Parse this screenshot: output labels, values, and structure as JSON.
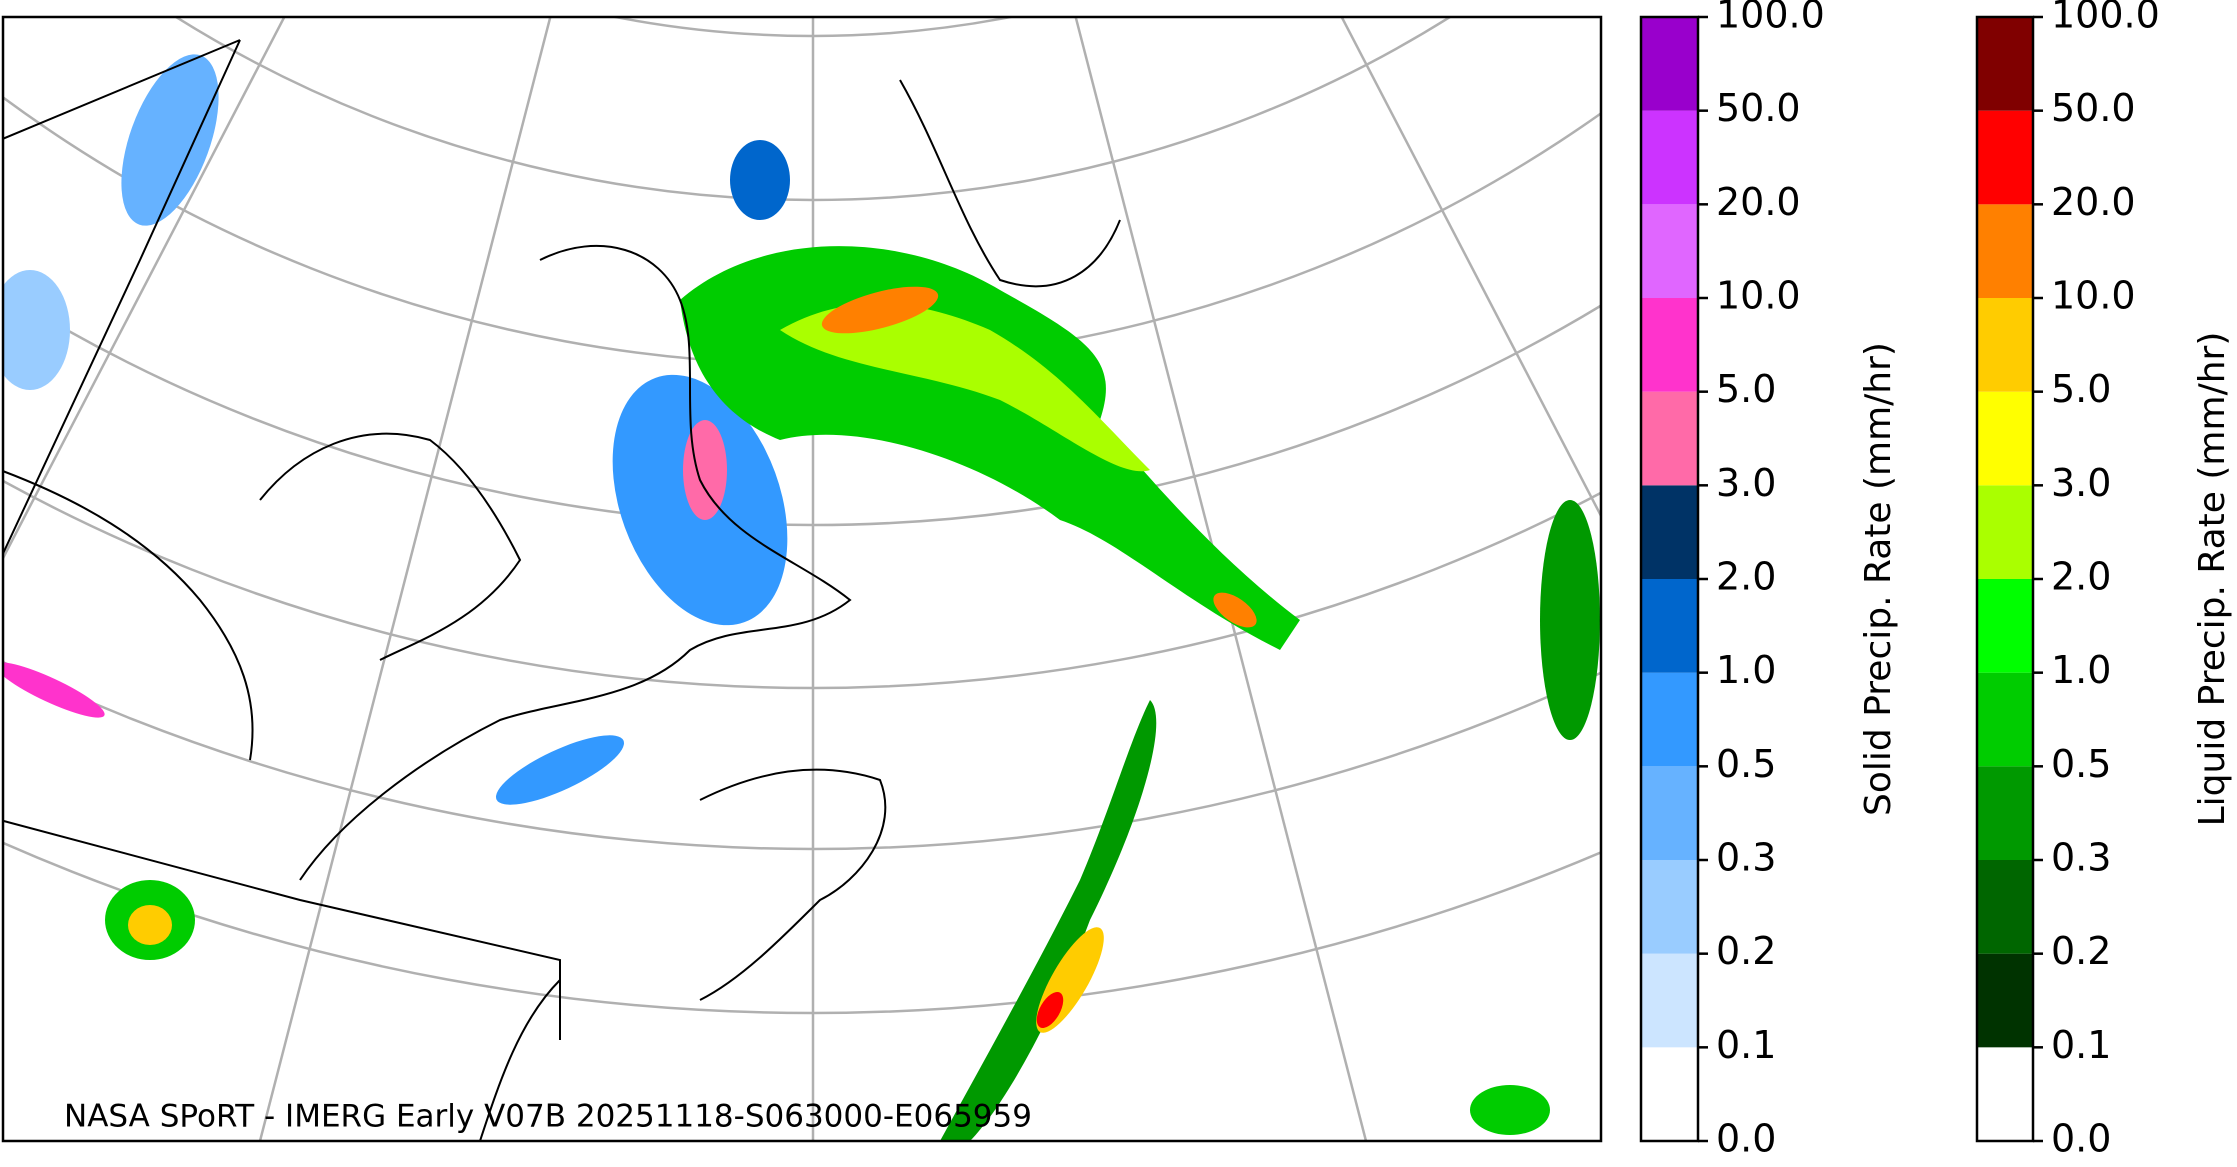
{
  "map": {
    "credit": "NASA SPoRT - IMERG Early V07B 20251118-S063000-E065959"
  },
  "colorbars": [
    {
      "label": "Solid Precip. Rate (mm/hr)",
      "colors": [
        "#ffffff",
        "#cce5ff",
        "#99ccff",
        "#66b2ff",
        "#3399ff",
        "#0066cc",
        "#003366",
        "#ff6aa8",
        "#ff33cc",
        "#e066ff",
        "#cc33ff",
        "#9900cc"
      ],
      "ticks": [
        {
          "value": 0,
          "label": "0.0"
        },
        0.1,
        0.2,
        0.3,
        0.5,
        {
          "value": 1,
          "label": "1.0"
        },
        {
          "value": 2,
          "label": "2.0"
        },
        {
          "value": 3,
          "label": "3.0"
        },
        {
          "value": 5,
          "label": "5.0"
        },
        {
          "value": 10,
          "label": "10.0"
        },
        {
          "value": 20,
          "label": "20.0"
        },
        {
          "value": 50,
          "label": "50.0"
        },
        {
          "value": 100,
          "label": "100.0"
        }
      ]
    },
    {
      "label": "Liquid Precip. Rate (mm/hr)",
      "colors": [
        "#ffffff",
        "#003300",
        "#006600",
        "#009900",
        "#00cc00",
        "#00ff00",
        "#aaff00",
        "#ffff00",
        "#ffcc00",
        "#ff8000",
        "#ff0000",
        "#800000",
        "#400000"
      ],
      "ticks": [
        {
          "value": 0,
          "label": "0.0"
        },
        0.1,
        0.2,
        0.3,
        0.5,
        {
          "value": 1,
          "label": "1.0"
        },
        {
          "value": 2,
          "label": "2.0"
        },
        {
          "value": 3,
          "label": "3.0"
        },
        {
          "value": 5,
          "label": "5.0"
        },
        {
          "value": 10,
          "label": "10.0"
        },
        {
          "value": 20,
          "label": "20.0"
        },
        {
          "value": 50,
          "label": "50.0"
        },
        {
          "value": 100,
          "label": "100.0"
        }
      ]
    }
  ]
}
